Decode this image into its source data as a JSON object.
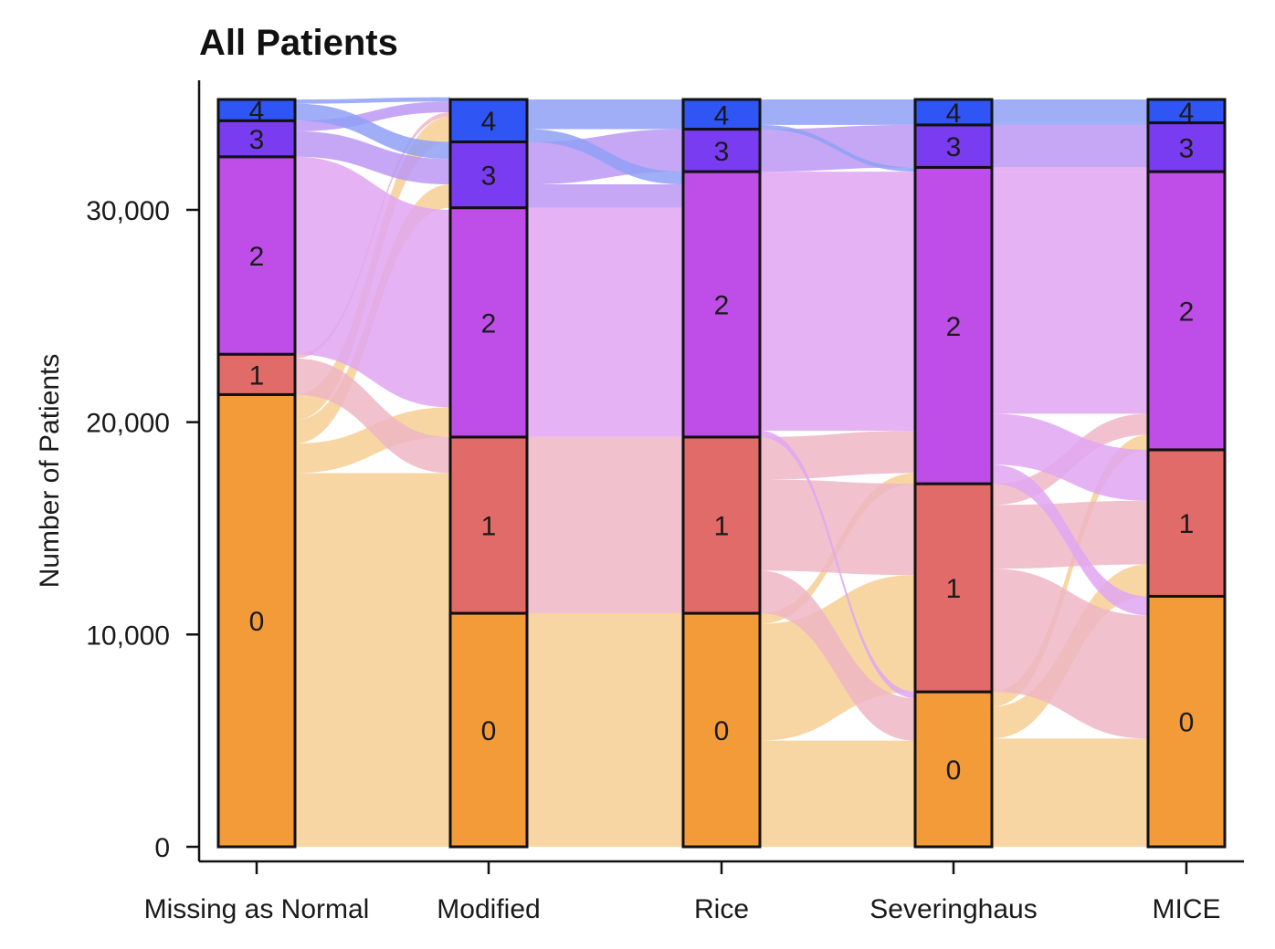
{
  "chart_data": {
    "type": "alluvial",
    "title": "All Patients",
    "xlabel": "",
    "ylabel": "Number of Patients",
    "ylim": [
      0,
      35500
    ],
    "yticks": [
      0,
      10000,
      20000,
      30000
    ],
    "ytick_labels": [
      "0",
      "10,000",
      "20,000",
      "30,000"
    ],
    "grid": false,
    "legend": "none",
    "categories": [
      "Missing as Normal",
      "Modified",
      "Rice",
      "Severinghaus",
      "MICE"
    ],
    "stack_order": [
      "0",
      "1",
      "2",
      "3",
      "4"
    ],
    "colors": {
      "0": "#f29b38",
      "1": "#e06b68",
      "2": "#bf4ee8",
      "3": "#7a3cf0",
      "4": "#2f55f5"
    },
    "flow_colors": {
      "0": "#f6cf93",
      "1": "#eeb6c4",
      "2": "#e0a6f2",
      "3": "#bb98f4",
      "4": "#8fa0f6"
    },
    "columns": [
      {
        "name": "Missing as Normal",
        "values": {
          "0": 21300,
          "1": 1900,
          "2": 9300,
          "3": 1700,
          "4": 1000
        }
      },
      {
        "name": "Modified",
        "values": {
          "0": 11000,
          "1": 8300,
          "2": 10800,
          "3": 3100,
          "4": 2000
        }
      },
      {
        "name": "Rice",
        "values": {
          "0": 11000,
          "1": 8300,
          "2": 12500,
          "3": 2000,
          "4": 1400
        }
      },
      {
        "name": "Severinghaus",
        "values": {
          "0": 7300,
          "1": 9800,
          "2": 14900,
          "3": 2000,
          "4": 1200
        }
      },
      {
        "name": "MICE",
        "values": {
          "0": 11800,
          "1": 6900,
          "2": 13100,
          "3": 2300,
          "4": 1100
        }
      }
    ],
    "flows": [
      [
        {
          "from": "0",
          "to": "0",
          "value": 11000
        },
        {
          "from": "0",
          "to": "1",
          "value": 6600
        },
        {
          "from": "0",
          "to": "2",
          "value": 1400
        },
        {
          "from": "0",
          "to": "3",
          "value": 1100
        },
        {
          "from": "0",
          "to": "4",
          "value": 1200
        },
        {
          "from": "1",
          "to": "1",
          "value": 1700
        },
        {
          "from": "1",
          "to": "4",
          "value": 200
        },
        {
          "from": "2",
          "to": "2",
          "value": 9300
        },
        {
          "from": "3",
          "to": "3",
          "value": 1200
        },
        {
          "from": "3",
          "to": "4",
          "value": 500
        },
        {
          "from": "3",
          "to": "3",
          "value": 0
        },
        {
          "from": "4",
          "to": "3",
          "value": 800
        },
        {
          "from": "4",
          "to": "4",
          "value": 200
        }
      ],
      [
        {
          "from": "0",
          "to": "0",
          "value": 11000
        },
        {
          "from": "1",
          "to": "1",
          "value": 8300
        },
        {
          "from": "2",
          "to": "2",
          "value": 10800
        },
        {
          "from": "3",
          "to": "2",
          "value": 1100
        },
        {
          "from": "3",
          "to": "3",
          "value": 2000
        },
        {
          "from": "4",
          "to": "2",
          "value": 600
        },
        {
          "from": "4",
          "to": "4",
          "value": 1400
        }
      ],
      [
        {
          "from": "0",
          "to": "0",
          "value": 5000
        },
        {
          "from": "0",
          "to": "1",
          "value": 5500
        },
        {
          "from": "0",
          "to": "2",
          "value": 500
        },
        {
          "from": "1",
          "to": "0",
          "value": 2000
        },
        {
          "from": "1",
          "to": "1",
          "value": 4300
        },
        {
          "from": "1",
          "to": "2",
          "value": 2000
        },
        {
          "from": "2",
          "to": "0",
          "value": 300
        },
        {
          "from": "2",
          "to": "2",
          "value": 12200
        },
        {
          "from": "3",
          "to": "3",
          "value": 2000
        },
        {
          "from": "4",
          "to": "4",
          "value": 1200
        },
        {
          "from": "4",
          "to": "3",
          "value": 0
        },
        {
          "from": "4",
          "to": "2",
          "value": 200
        }
      ],
      [
        {
          "from": "0",
          "to": "0",
          "value": 5100
        },
        {
          "from": "0",
          "to": "1",
          "value": 1500
        },
        {
          "from": "0",
          "to": "2",
          "value": 700
        },
        {
          "from": "1",
          "to": "0",
          "value": 5800
        },
        {
          "from": "1",
          "to": "1",
          "value": 3000
        },
        {
          "from": "1",
          "to": "2",
          "value": 1000
        },
        {
          "from": "2",
          "to": "0",
          "value": 900
        },
        {
          "from": "2",
          "to": "1",
          "value": 2400
        },
        {
          "from": "2",
          "to": "2",
          "value": 11400
        },
        {
          "from": "2",
          "to": "3",
          "value": 200
        },
        {
          "from": "3",
          "to": "3",
          "value": 2000
        },
        {
          "from": "4",
          "to": "3",
          "value": 100
        },
        {
          "from": "4",
          "to": "4",
          "value": 1100
        }
      ]
    ]
  }
}
